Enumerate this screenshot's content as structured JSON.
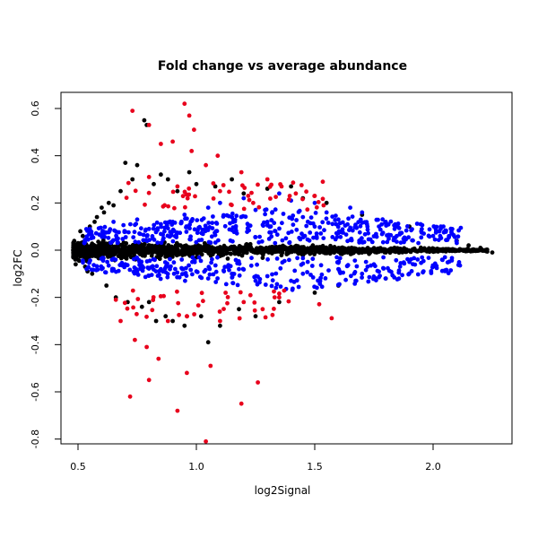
{
  "chart_data": {
    "type": "scatter",
    "title": "Fold change vs average abundance",
    "xlabel": "log2Signal",
    "ylabel": "log2FC",
    "xlim": [
      0.45,
      2.3
    ],
    "ylim": [
      -0.83,
      0.66
    ],
    "xticks": [
      0.5,
      1.0,
      1.5,
      2.0
    ],
    "xtick_labels": [
      "0.5",
      "1.0",
      "1.5",
      "2.0"
    ],
    "yticks": [
      -0.8,
      -0.6,
      -0.4,
      -0.2,
      0.0,
      0.2,
      0.4,
      0.6
    ],
    "ytick_labels": [
      "-0.8",
      "-0.6",
      "-0.4",
      "-0.2",
      "0.0",
      "0.2",
      "0.4",
      "0.6"
    ],
    "grid": false,
    "legend": "none",
    "series": [
      {
        "color": "#000000",
        "marker": "filled-circle",
        "points": [
          [
            0.48,
            0.0
          ],
          [
            0.5,
            0.03
          ],
          [
            0.5,
            -0.04
          ],
          [
            0.52,
            0.06
          ],
          [
            0.53,
            -0.07
          ],
          [
            0.55,
            0.1
          ],
          [
            0.56,
            -0.1
          ],
          [
            0.58,
            0.14
          ],
          [
            0.6,
            0.18
          ],
          [
            0.62,
            -0.15
          ],
          [
            0.63,
            0.2
          ],
          [
            0.65,
            0.19
          ],
          [
            0.66,
            -0.2
          ],
          [
            0.68,
            0.25
          ],
          [
            0.7,
            0.37
          ],
          [
            0.71,
            -0.22
          ],
          [
            0.73,
            0.3
          ],
          [
            0.75,
            0.36
          ],
          [
            0.77,
            -0.24
          ],
          [
            0.78,
            0.55
          ],
          [
            0.79,
            0.53
          ],
          [
            0.8,
            -0.22
          ],
          [
            0.82,
            0.28
          ],
          [
            0.83,
            -0.3
          ],
          [
            0.85,
            0.32
          ],
          [
            0.87,
            -0.28
          ],
          [
            0.88,
            0.3
          ],
          [
            0.9,
            -0.3
          ],
          [
            0.92,
            0.25
          ],
          [
            0.95,
            -0.32
          ],
          [
            0.97,
            0.33
          ],
          [
            1.0,
            0.28
          ],
          [
            1.02,
            -0.28
          ],
          [
            1.05,
            -0.39
          ],
          [
            1.08,
            0.27
          ],
          [
            1.1,
            -0.32
          ],
          [
            1.15,
            0.3
          ],
          [
            1.18,
            -0.25
          ],
          [
            1.2,
            0.24
          ],
          [
            1.25,
            -0.28
          ],
          [
            1.3,
            0.26
          ],
          [
            1.35,
            -0.22
          ],
          [
            1.4,
            0.27
          ],
          [
            1.45,
            0.22
          ],
          [
            1.5,
            -0.18
          ],
          [
            1.55,
            0.2
          ],
          [
            1.6,
            -0.15
          ],
          [
            1.7,
            0.15
          ],
          [
            1.8,
            -0.12
          ],
          [
            1.9,
            0.1
          ],
          [
            2.0,
            -0.07
          ],
          [
            2.1,
            0.04
          ],
          [
            2.15,
            0.02
          ],
          [
            2.2,
            0.01
          ],
          [
            2.25,
            -0.01
          ],
          [
            0.49,
            -0.06
          ],
          [
            0.51,
            0.08
          ],
          [
            0.54,
            -0.09
          ],
          [
            0.57,
            0.12
          ],
          [
            0.61,
            0.16
          ]
        ]
      },
      {
        "color": "#0000ff",
        "marker": "filled-circle",
        "points": [
          [
            0.55,
            0.09
          ],
          [
            0.6,
            -0.08
          ],
          [
            0.65,
            0.12
          ],
          [
            0.7,
            -0.06
          ],
          [
            0.75,
            0.13
          ],
          [
            0.8,
            0.09
          ],
          [
            0.85,
            -0.08
          ],
          [
            0.9,
            0.12
          ],
          [
            0.95,
            0.15
          ],
          [
            1.0,
            -0.09
          ],
          [
            1.05,
            0.18
          ],
          [
            1.1,
            0.2
          ],
          [
            1.15,
            -0.1
          ],
          [
            1.2,
            0.22
          ],
          [
            1.25,
            0.17
          ],
          [
            1.3,
            -0.11
          ],
          [
            1.35,
            0.24
          ],
          [
            1.4,
            0.21
          ],
          [
            1.45,
            -0.1
          ],
          [
            1.5,
            0.2
          ],
          [
            1.55,
            0.16
          ],
          [
            1.6,
            -0.08
          ],
          [
            1.65,
            0.18
          ],
          [
            1.7,
            0.16
          ],
          [
            1.75,
            -0.06
          ],
          [
            1.8,
            0.12
          ],
          [
            1.85,
            0.1
          ],
          [
            1.9,
            -0.05
          ],
          [
            1.95,
            0.08
          ],
          [
            2.0,
            0.06
          ],
          [
            2.05,
            -0.03
          ],
          [
            2.1,
            0.03
          ],
          [
            1.3,
            0.12
          ],
          [
            1.4,
            -0.13
          ],
          [
            1.5,
            0.1
          ],
          [
            1.6,
            0.13
          ],
          [
            1.7,
            -0.1
          ],
          [
            1.45,
            0.14
          ],
          [
            1.25,
            -0.13
          ],
          [
            1.15,
            0.14
          ],
          [
            1.05,
            -0.12
          ],
          [
            0.95,
            -0.1
          ],
          [
            0.85,
            0.11
          ],
          [
            0.75,
            -0.09
          ],
          [
            0.65,
            -0.08
          ]
        ]
      },
      {
        "color": "#e8001c",
        "marker": "filled-circle",
        "points": [
          [
            0.73,
            0.59
          ],
          [
            0.8,
            0.53
          ],
          [
            0.95,
            0.62
          ],
          [
            0.99,
            0.51
          ],
          [
            0.97,
            0.57
          ],
          [
            0.9,
            0.46
          ],
          [
            0.85,
            0.45
          ],
          [
            0.98,
            0.42
          ],
          [
            1.09,
            0.4
          ],
          [
            1.04,
            0.36
          ],
          [
            1.19,
            0.33
          ],
          [
            1.3,
            0.3
          ],
          [
            1.36,
            0.27
          ],
          [
            1.42,
            0.24
          ],
          [
            0.72,
            -0.62
          ],
          [
            0.8,
            -0.55
          ],
          [
            0.92,
            -0.68
          ],
          [
            0.96,
            -0.52
          ],
          [
            1.04,
            -0.81
          ],
          [
            1.06,
            -0.49
          ],
          [
            1.19,
            -0.65
          ],
          [
            1.26,
            -0.56
          ],
          [
            0.79,
            -0.41
          ],
          [
            0.84,
            -0.46
          ],
          [
            0.74,
            -0.38
          ],
          [
            0.88,
            -0.3
          ],
          [
            0.96,
            -0.28
          ],
          [
            1.1,
            -0.3
          ],
          [
            1.2,
            -0.22
          ],
          [
            1.28,
            -0.25
          ],
          [
            0.68,
            -0.3
          ],
          [
            0.66,
            -0.21
          ],
          [
            0.92,
            0.27
          ],
          [
            1.1,
            0.25
          ],
          [
            1.24,
            0.2
          ],
          [
            0.8,
            0.31
          ],
          [
            1.35,
            -0.2
          ],
          [
            1.5,
            0.23
          ]
        ]
      }
    ]
  }
}
